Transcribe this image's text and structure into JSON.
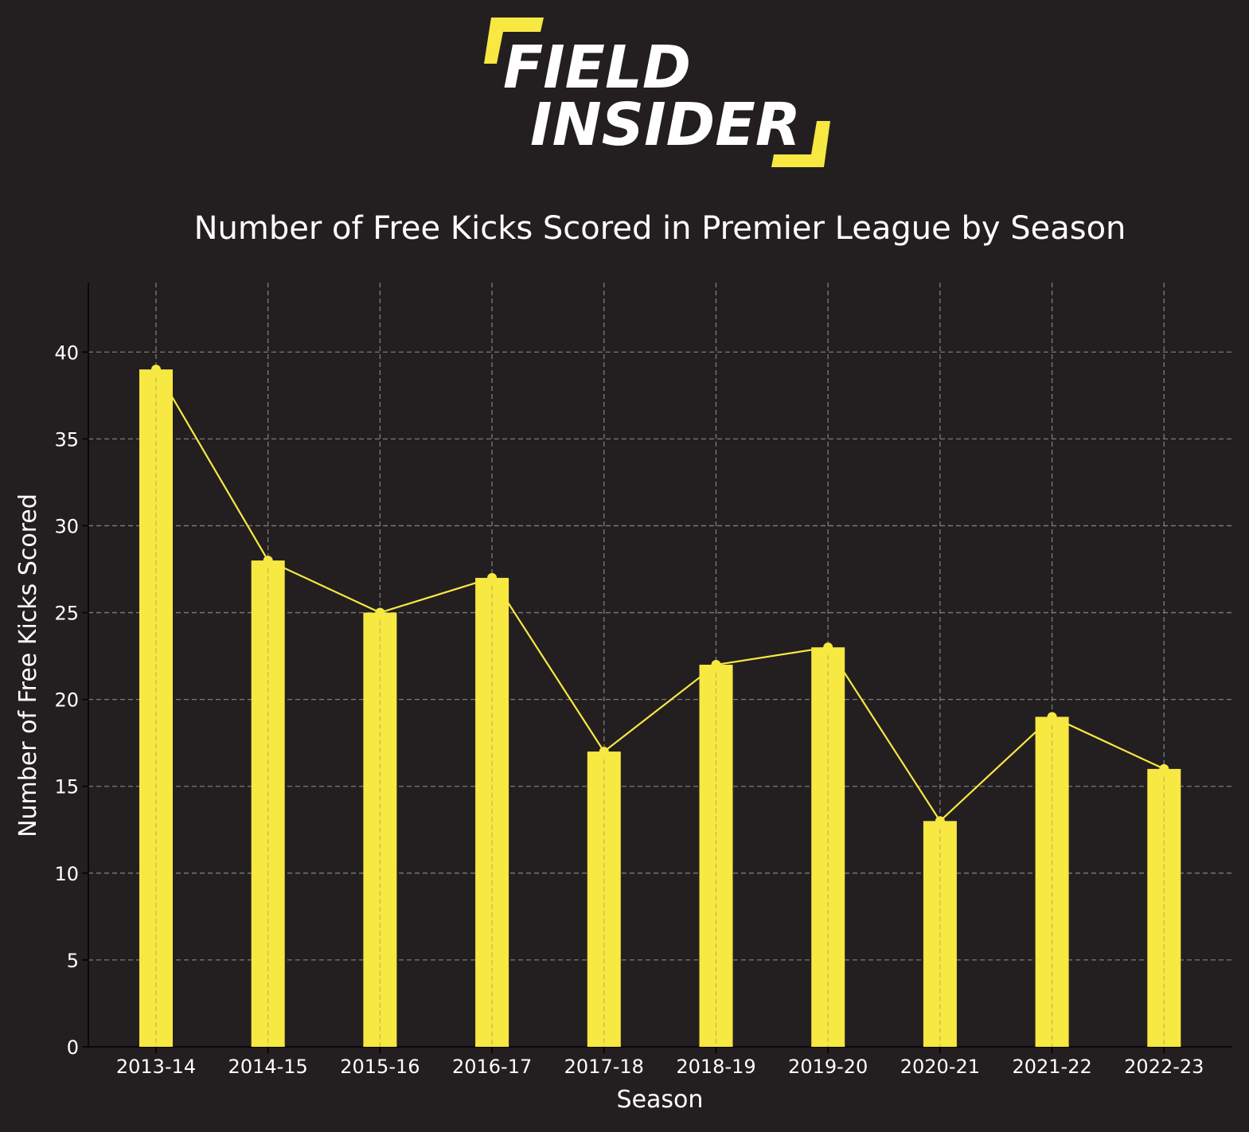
{
  "logo": {
    "line1": "FIELD",
    "line2": "INSIDER",
    "accent_color": "#f7e842"
  },
  "colors": {
    "background": "#231f20",
    "bar": "#f7e842",
    "line": "#f7e842",
    "grid": "#7a7a7a",
    "text": "#ffffff"
  },
  "chart_data": {
    "type": "bar",
    "title": "Number of Free Kicks Scored in Premier League by Season",
    "xlabel": "Season",
    "ylabel": "Number of Free Kicks Scored",
    "categories": [
      "2013-14",
      "2014-15",
      "2015-16",
      "2016-17",
      "2017-18",
      "2018-19",
      "2019-20",
      "2020-21",
      "2021-22",
      "2022-23"
    ],
    "values": [
      39,
      28,
      25,
      27,
      17,
      22,
      23,
      13,
      19,
      16
    ],
    "overlay": "line-with-markers",
    "ylim": [
      0,
      44
    ],
    "yticks": [
      0,
      5,
      10,
      15,
      20,
      25,
      30,
      35,
      40
    ],
    "grid": true,
    "legend": "none"
  }
}
